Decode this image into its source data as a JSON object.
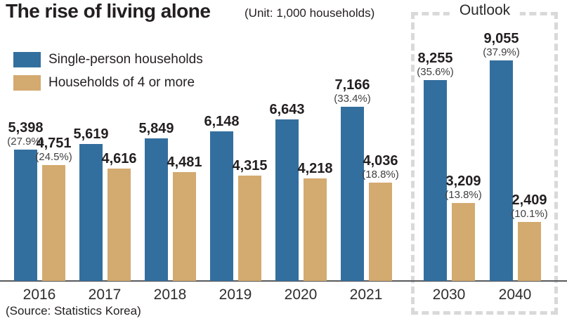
{
  "header": {
    "title": "The rise of living alone",
    "unit_note": "(Unit: 1,000 households)"
  },
  "legend": [
    {
      "label": "Single-person households",
      "color": "#336f9e"
    },
    {
      "label": "Households of 4 or more",
      "color": "#d3aa6f"
    }
  ],
  "outlook": {
    "label": "Outlook",
    "categories": [
      "2030",
      "2040"
    ]
  },
  "source": "(Source: Statistics Korea)",
  "colors": {
    "single_person": "#336f9e",
    "four_or_more": "#d3aa6f",
    "baseline": "#58595b",
    "outlook_border": "#d9d9d9"
  },
  "chart_data": {
    "type": "bar",
    "title": "The rise of living alone",
    "unit": "(Unit: 1,000 households)",
    "categories": [
      "2016",
      "2017",
      "2018",
      "2019",
      "2020",
      "2021",
      "2030",
      "2040"
    ],
    "grid": false,
    "legend_position": "top-left",
    "ylim": [
      0,
      9500
    ],
    "series": [
      {
        "name": "Single-person households",
        "color": "#336f9e",
        "values": [
          5398,
          5619,
          5849,
          6148,
          6643,
          7166,
          8255,
          9055
        ],
        "value_labels": [
          "5,398",
          "5,619",
          "5,849",
          "6,148",
          "6,643",
          "7,166",
          "8,255",
          "9,055"
        ],
        "pct_labels": [
          "(27.9%)",
          null,
          null,
          null,
          null,
          "(33.4%)",
          "(35.6%)",
          "(37.9%)"
        ]
      },
      {
        "name": "Households of 4 or more",
        "color": "#d3aa6f",
        "values": [
          4751,
          4616,
          4481,
          4315,
          4218,
          4036,
          3209,
          2409
        ],
        "value_labels": [
          "4,751",
          "4,616",
          "4,481",
          "4,315",
          "4,218",
          "4,036",
          "3,209",
          "2,409"
        ],
        "pct_labels": [
          "(24.5%)",
          null,
          null,
          null,
          null,
          "(18.8%)",
          "(13.8%)",
          "(10.1%)"
        ]
      }
    ]
  }
}
